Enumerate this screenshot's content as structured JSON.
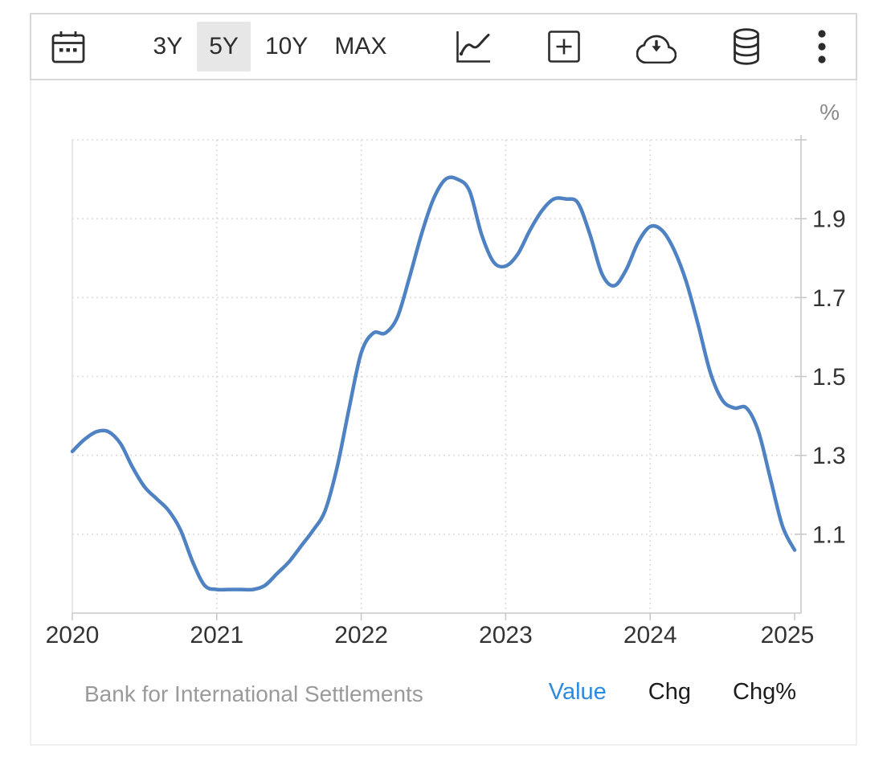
{
  "toolbar": {
    "range_buttons": [
      {
        "label": "3Y",
        "active": false
      },
      {
        "label": "5Y",
        "active": true
      },
      {
        "label": "10Y",
        "active": false
      },
      {
        "label": "MAX",
        "active": false
      }
    ]
  },
  "chart": {
    "unit_label": "%",
    "y_tick_labels": [
      "1.9",
      "1.7",
      "1.5",
      "1.3",
      "1.1"
    ],
    "x_tick_labels": [
      "2020",
      "2021",
      "2022",
      "2023",
      "2024",
      "2025"
    ]
  },
  "footer": {
    "source": "Bank for International Settlements",
    "modes": [
      {
        "label": "Value",
        "active": true
      },
      {
        "label": "Chg",
        "active": false
      },
      {
        "label": "Chg%",
        "active": false
      }
    ]
  },
  "colors": {
    "line": "#4f82c2",
    "grid": "#dcdcdc",
    "axis": "#c9c9c9",
    "plot_left_border": "#e2e2e2",
    "tick_text": "#333333",
    "muted_text": "#9a9a9a",
    "active_mode": "#2b8ae2",
    "active_range_bg": "#e7e7e7"
  },
  "chart_data": {
    "type": "line",
    "title": "",
    "ylabel": "%",
    "source": "Bank for International Settlements",
    "line_color": "#4f82c2",
    "grid": "dotted",
    "ylim": [
      0.9,
      2.1
    ],
    "xlim": [
      2020,
      2025.05
    ],
    "y_gridlines": [
      1.1,
      1.3,
      1.5,
      1.7,
      1.9,
      2.1
    ],
    "y_tick_values": [
      1.9,
      1.7,
      1.5,
      1.3,
      1.1
    ],
    "x_tick_years": [
      2020,
      2021,
      2022,
      2023,
      2024,
      2025
    ],
    "x_months": [
      "2020-01",
      "2020-02",
      "2020-03",
      "2020-04",
      "2020-05",
      "2020-06",
      "2020-07",
      "2020-08",
      "2020-09",
      "2020-10",
      "2020-11",
      "2020-12",
      "2021-01",
      "2021-02",
      "2021-03",
      "2021-04",
      "2021-05",
      "2021-06",
      "2021-07",
      "2021-08",
      "2021-09",
      "2021-10",
      "2021-11",
      "2021-12",
      "2022-01",
      "2022-02",
      "2022-03",
      "2022-04",
      "2022-05",
      "2022-06",
      "2022-07",
      "2022-08",
      "2022-09",
      "2022-10",
      "2022-11",
      "2022-12",
      "2023-01",
      "2023-02",
      "2023-03",
      "2023-04",
      "2023-05",
      "2023-06",
      "2023-07",
      "2023-08",
      "2023-09",
      "2023-10",
      "2023-11",
      "2023-12",
      "2024-01",
      "2024-02",
      "2024-03",
      "2024-04",
      "2024-05",
      "2024-06",
      "2024-07",
      "2024-08",
      "2024-09",
      "2024-10",
      "2024-11",
      "2024-12",
      "2025-01"
    ],
    "values": [
      1.31,
      1.34,
      1.36,
      1.36,
      1.33,
      1.27,
      1.22,
      1.19,
      1.16,
      1.11,
      1.03,
      0.97,
      0.96,
      0.96,
      0.96,
      0.96,
      0.97,
      1.0,
      1.03,
      1.07,
      1.11,
      1.16,
      1.27,
      1.42,
      1.56,
      1.61,
      1.61,
      1.65,
      1.75,
      1.86,
      1.95,
      2.0,
      2.0,
      1.97,
      1.86,
      1.79,
      1.78,
      1.81,
      1.87,
      1.92,
      1.95,
      1.95,
      1.94,
      1.86,
      1.76,
      1.73,
      1.77,
      1.84,
      1.88,
      1.87,
      1.82,
      1.74,
      1.63,
      1.51,
      1.44,
      1.42,
      1.42,
      1.36,
      1.24,
      1.12,
      1.06
    ]
  }
}
